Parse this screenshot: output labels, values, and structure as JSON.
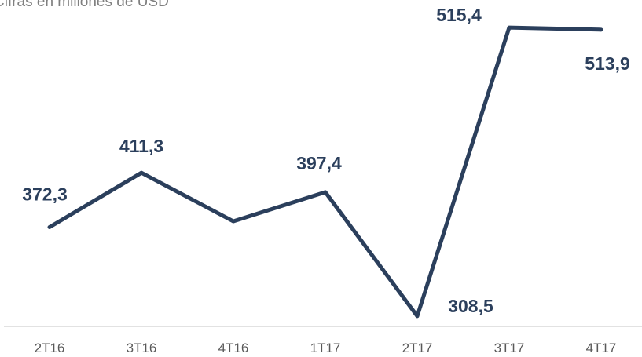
{
  "chart_data": {
    "type": "line",
    "subtitle": "Cifras en millones de USD",
    "categories": [
      "2T16",
      "3T16",
      "4T16",
      "1T17",
      "2T17",
      "3T17",
      "4T17"
    ],
    "series": [
      {
        "name": "USD",
        "color": "#2b3f5c",
        "values": [
          372.3,
          411.3,
          376.5,
          397.4,
          308.5,
          515.4,
          513.9
        ],
        "value_labels": [
          "372,3",
          "411,3",
          null,
          "397,4",
          "308,5",
          "515,4",
          "513,9"
        ]
      }
    ],
    "ylim": [
      300,
      520
    ]
  }
}
